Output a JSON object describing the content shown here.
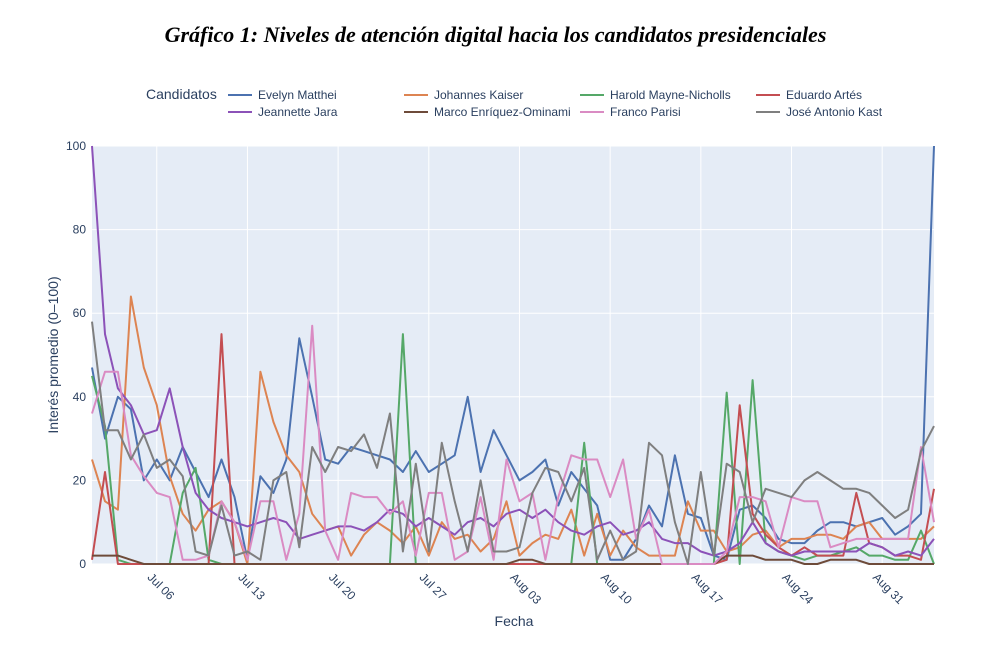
{
  "figure_title": "Gráfico 1: Niveles de atención digital hacia los candidatos presidenciales",
  "chart_data": {
    "type": "line",
    "xlabel": "Fecha",
    "ylabel": "Interés promedio (0–100)",
    "ylim": [
      0,
      100
    ],
    "yticks": [
      0,
      20,
      40,
      60,
      80,
      100
    ],
    "x_start": "2025-07-01",
    "xticks": [
      {
        "date": "2025-07-06",
        "label": "Jul 06"
      },
      {
        "date": "2025-07-13",
        "label": "Jul 13"
      },
      {
        "date": "2025-07-20",
        "label": "Jul 20"
      },
      {
        "date": "2025-07-27",
        "label": "Jul 27"
      },
      {
        "date": "2025-08-03",
        "label": "Aug 03"
      },
      {
        "date": "2025-08-10",
        "label": "Aug 10"
      },
      {
        "date": "2025-08-17",
        "label": "Aug 17"
      },
      {
        "date": "2025-08-24",
        "label": "Aug 24"
      },
      {
        "date": "2025-08-31",
        "label": "Aug 31"
      }
    ],
    "grid": true,
    "legend_title": "Candidatos",
    "legend_position": "top",
    "plot_background": "#e5ecf6",
    "series": [
      {
        "name": "Evelyn Matthei",
        "color": "#4c72b0",
        "values": [
          47,
          30,
          40,
          37,
          20,
          25,
          20,
          28,
          22,
          16,
          25,
          16,
          1,
          21,
          17,
          25,
          54,
          40,
          25,
          24,
          28,
          27,
          26,
          25,
          22,
          27,
          22,
          24,
          26,
          40,
          22,
          32,
          26,
          20,
          22,
          25,
          14,
          22,
          18,
          14,
          1,
          1,
          6,
          14,
          9,
          26,
          12,
          11,
          2,
          1,
          13,
          14,
          11,
          6,
          5,
          5,
          8,
          10,
          10,
          9,
          10,
          11,
          7,
          9,
          12,
          100
        ]
      },
      {
        "name": "Johannes Kaiser",
        "color": "#dd8452",
        "values": [
          25,
          15,
          13,
          64,
          47,
          38,
          21,
          12,
          8,
          13,
          15,
          10,
          0,
          46,
          34,
          26,
          22,
          12,
          8,
          9,
          2,
          7,
          10,
          8,
          5,
          9,
          2,
          10,
          6,
          7,
          3,
          6,
          15,
          2,
          5,
          7,
          6,
          13,
          2,
          12,
          2,
          8,
          4,
          2,
          2,
          2,
          15,
          8,
          8,
          3,
          4,
          7,
          8,
          4,
          6,
          6,
          7,
          7,
          6,
          9,
          10,
          6,
          6,
          6,
          6,
          9
        ]
      },
      {
        "name": "Harold Mayne-Nicholls",
        "color": "#55a868",
        "values": [
          45,
          33,
          1,
          0,
          0,
          0,
          0,
          17,
          23,
          1,
          0,
          0,
          0,
          0,
          0,
          0,
          0,
          0,
          0,
          0,
          0,
          0,
          0,
          0,
          55,
          0,
          0,
          0,
          0,
          0,
          0,
          0,
          0,
          0,
          0,
          0,
          0,
          0,
          29,
          0,
          0,
          0,
          0,
          0,
          0,
          0,
          0,
          0,
          0,
          41,
          0,
          44,
          5,
          3,
          2,
          1,
          2,
          2,
          3,
          4,
          2,
          2,
          1,
          1,
          8,
          0
        ]
      },
      {
        "name": "Eduardo Artés",
        "color": "#c44e52",
        "values": [
          1,
          22,
          0,
          0,
          0,
          0,
          0,
          0,
          0,
          0,
          55,
          0,
          0,
          0,
          0,
          0,
          0,
          0,
          0,
          0,
          0,
          0,
          0,
          0,
          0,
          0,
          0,
          0,
          0,
          0,
          0,
          0,
          0,
          0,
          0,
          0,
          0,
          0,
          0,
          0,
          0,
          0,
          0,
          0,
          0,
          0,
          0,
          0,
          0,
          1,
          38,
          12,
          7,
          4,
          2,
          4,
          2,
          2,
          2,
          17,
          5,
          4,
          2,
          2,
          1,
          18
        ]
      },
      {
        "name": "Jeannette Jara",
        "color": "#8c52b8",
        "values": [
          100,
          55,
          42,
          38,
          31,
          32,
          42,
          28,
          17,
          13,
          11,
          10,
          9,
          10,
          11,
          10,
          6,
          7,
          8,
          9,
          9,
          8,
          10,
          13,
          12,
          9,
          11,
          9,
          7,
          10,
          11,
          9,
          12,
          13,
          11,
          13,
          10,
          8,
          7,
          9,
          10,
          7,
          8,
          10,
          6,
          5,
          5,
          3,
          2,
          3,
          5,
          10,
          5,
          3,
          2,
          3,
          3,
          3,
          3,
          3,
          5,
          4,
          2,
          3,
          2,
          6
        ]
      },
      {
        "name": "Marco Enríquez-Ominami",
        "color": "#6e4b3a",
        "values": [
          2,
          2,
          2,
          1,
          0,
          0,
          0,
          0,
          0,
          0,
          0,
          0,
          0,
          0,
          0,
          0,
          0,
          0,
          0,
          0,
          0,
          0,
          0,
          0,
          0,
          0,
          0,
          0,
          0,
          0,
          0,
          0,
          0,
          1,
          1,
          0,
          0,
          0,
          0,
          0,
          0,
          0,
          0,
          0,
          0,
          0,
          0,
          0,
          0,
          2,
          2,
          2,
          1,
          1,
          1,
          0,
          0,
          1,
          1,
          1,
          0,
          0,
          0,
          0,
          0,
          0
        ]
      },
      {
        "name": "Franco Parisi",
        "color": "#da8bc3",
        "values": [
          36,
          46,
          46,
          26,
          21,
          17,
          16,
          1,
          1,
          2,
          15,
          10,
          1,
          15,
          15,
          1,
          12,
          57,
          8,
          1,
          17,
          16,
          16,
          12,
          15,
          2,
          17,
          17,
          1,
          3,
          16,
          1,
          25,
          15,
          17,
          1,
          16,
          26,
          25,
          25,
          16,
          25,
          6,
          13,
          0,
          0,
          0,
          0,
          0,
          3,
          16,
          16,
          15,
          4,
          16,
          15,
          15,
          4,
          5,
          6,
          6,
          6,
          6,
          6,
          28,
          10
        ]
      },
      {
        "name": "José Antonio Kast",
        "color": "#7f7f7f",
        "values": [
          58,
          32,
          32,
          25,
          31,
          23,
          25,
          21,
          3,
          2,
          14,
          2,
          3,
          1,
          20,
          22,
          4,
          28,
          22,
          28,
          27,
          31,
          23,
          36,
          3,
          24,
          3,
          29,
          15,
          3,
          20,
          3,
          3,
          4,
          17,
          23,
          22,
          15,
          23,
          1,
          8,
          1,
          3,
          29,
          26,
          10,
          0,
          22,
          2,
          24,
          22,
          10,
          18,
          17,
          16,
          20,
          22,
          20,
          18,
          18,
          17,
          14,
          11,
          13,
          27,
          33
        ]
      }
    ]
  }
}
